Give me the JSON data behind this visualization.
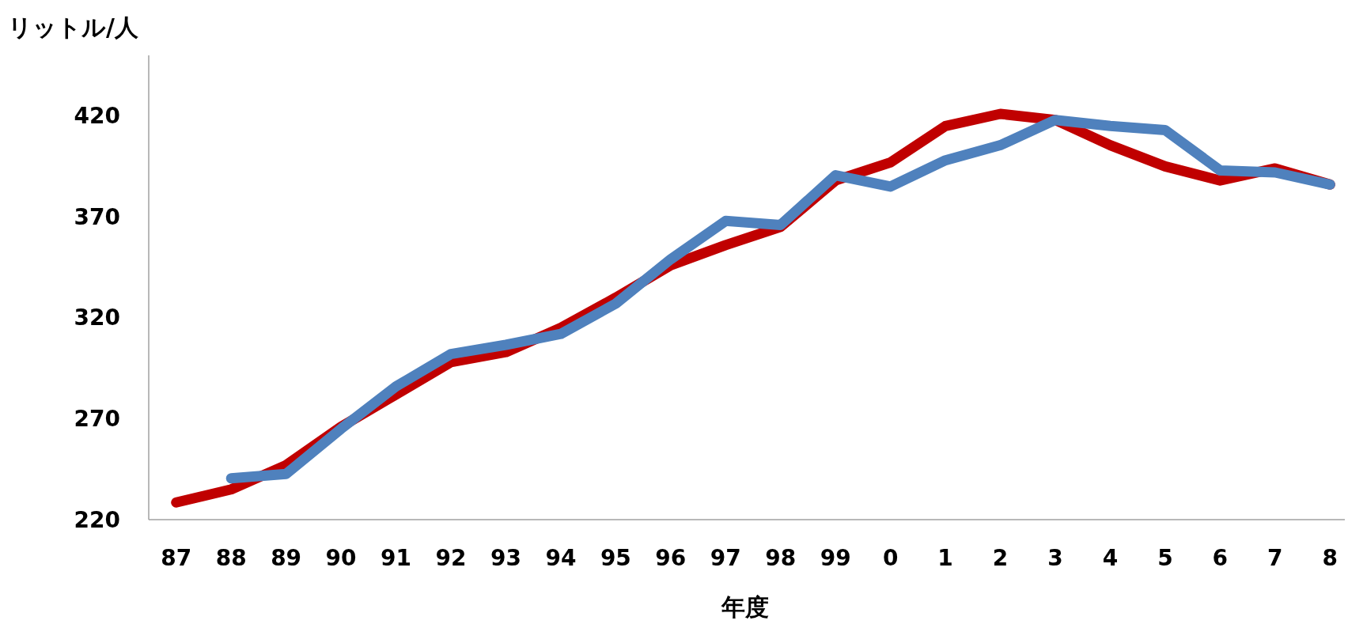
{
  "chart_data": {
    "type": "line",
    "xlabel": "年度",
    "ylabel": "リットル/人",
    "categories": [
      "87",
      "88",
      "89",
      "90",
      "91",
      "92",
      "93",
      "94",
      "95",
      "96",
      "97",
      "98",
      "99",
      "0",
      "1",
      "2",
      "3",
      "4",
      "5",
      "6",
      "7",
      "8"
    ],
    "series": [
      {
        "color": "#c00000",
        "values": [
          228.5,
          235,
          247,
          266,
          282,
          298,
          303,
          315,
          330,
          346,
          356,
          365,
          388,
          397,
          415,
          421,
          418,
          405.5,
          395,
          388,
          394,
          386
        ]
      },
      {
        "color": "#4f81bd",
        "values": [
          null,
          240.5,
          242.6,
          265,
          286,
          302,
          306.6,
          312,
          327,
          349,
          368,
          366,
          390.6,
          385,
          398,
          405.5,
          418,
          415,
          413,
          393,
          392,
          386
        ]
      }
    ],
    "ylim": [
      220,
      450
    ],
    "yticks": [
      220,
      270,
      320,
      370,
      420
    ],
    "grid": false,
    "marker": "none",
    "line_style": "solid"
  }
}
